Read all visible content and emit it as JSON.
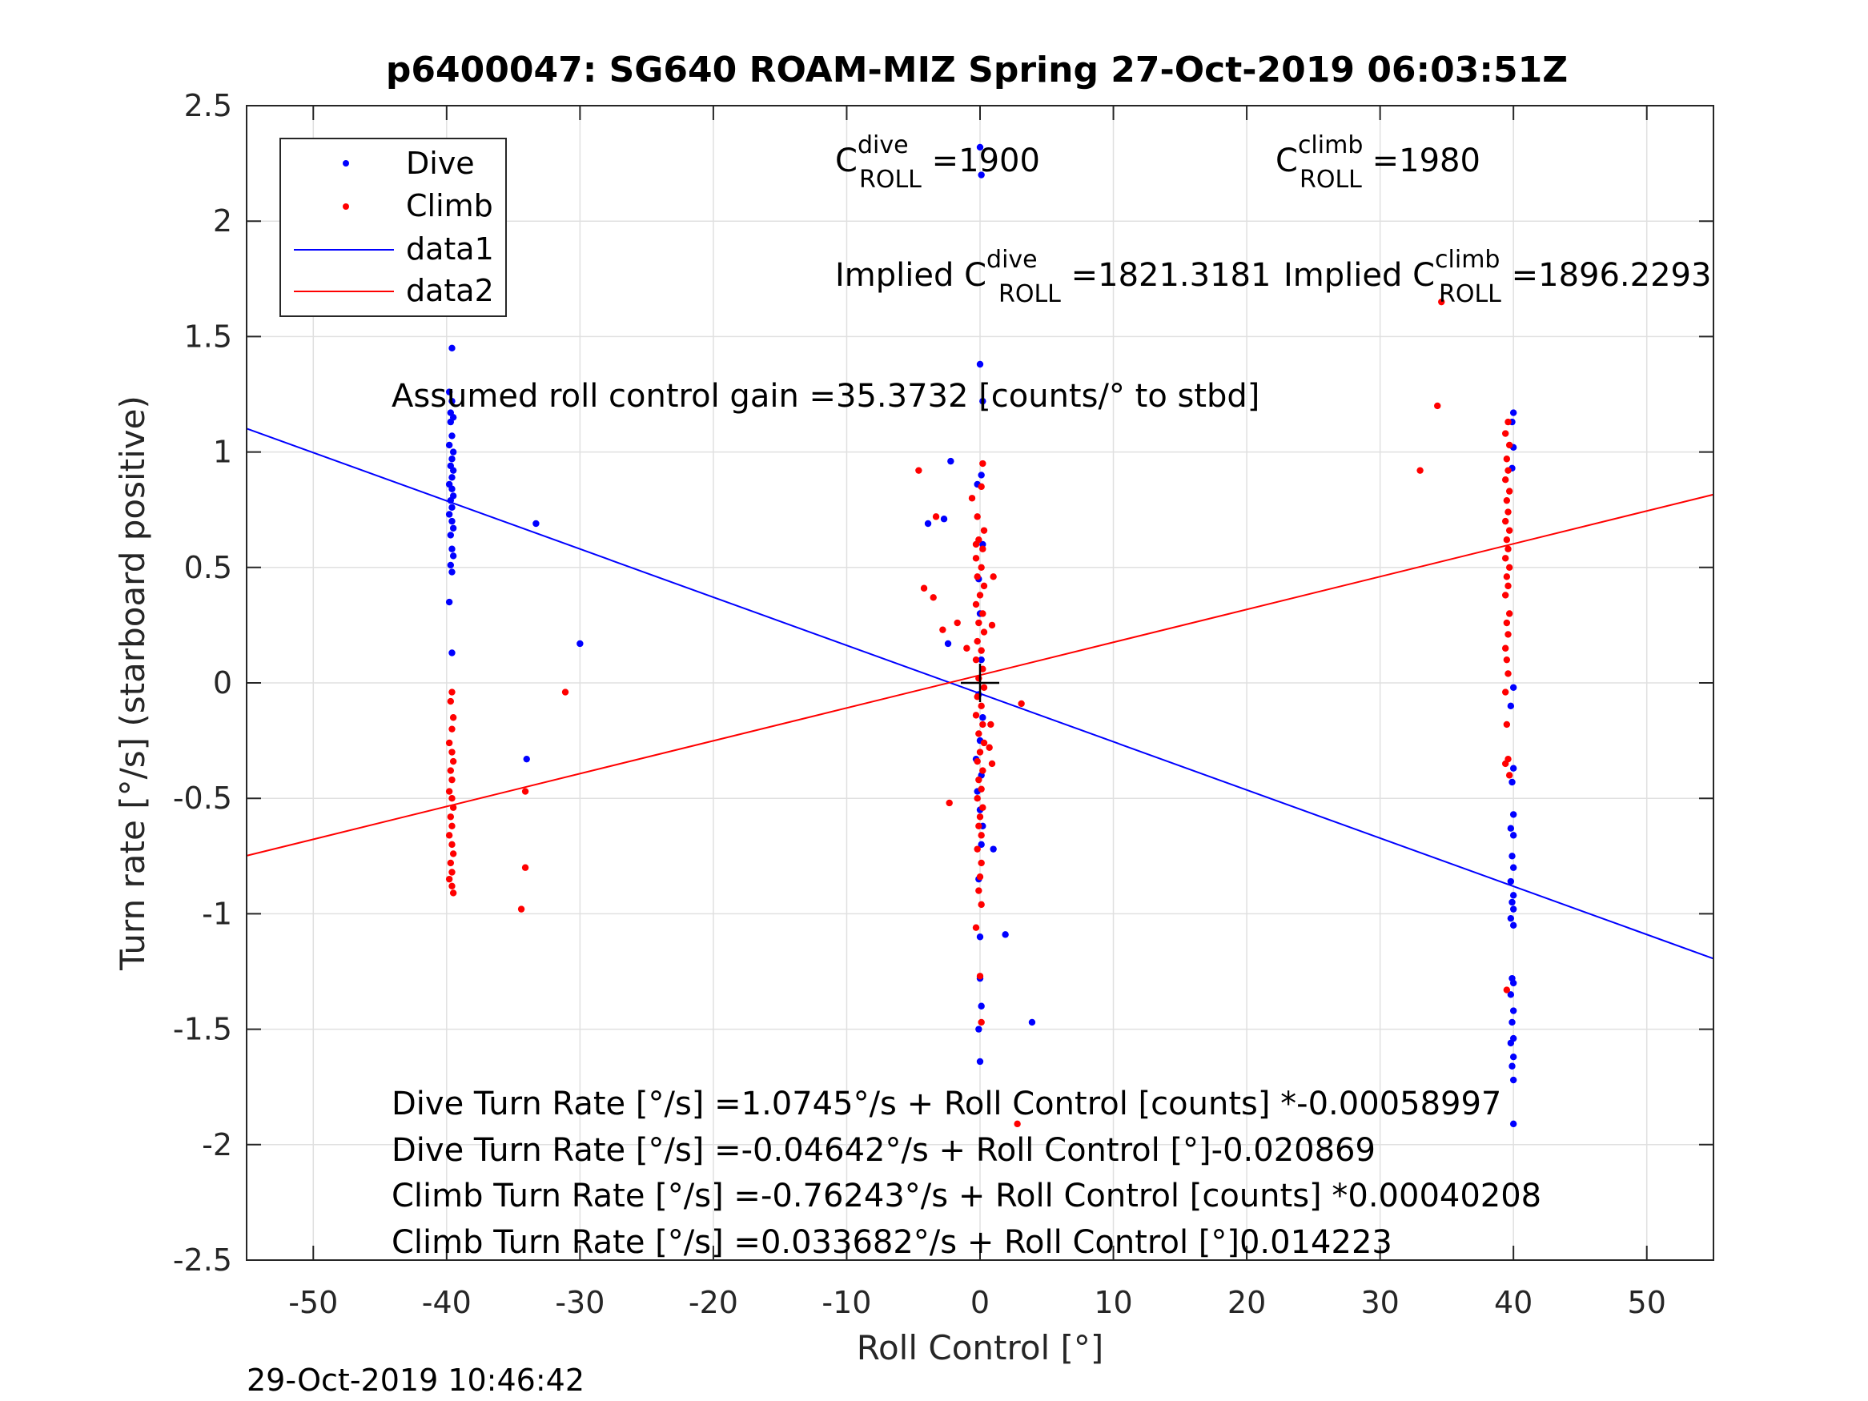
{
  "chart_data": {
    "type": "scatter",
    "title": "p6400047: SG640 ROAM-MIZ Spring 27-Oct-2019 06:03:51Z",
    "xlabel": "Roll Control [°]",
    "ylabel": "Turn rate [°/s] (starboard positive)",
    "xlim": [
      -55,
      55
    ],
    "ylim": [
      -2.5,
      2.5
    ],
    "xticks": [
      "-50",
      "-40",
      "-30",
      "-20",
      "-10",
      "0",
      "10",
      "20",
      "30",
      "40",
      "50"
    ],
    "xtick_values": [
      -50,
      -40,
      -30,
      -20,
      -10,
      0,
      10,
      20,
      30,
      40,
      50
    ],
    "yticks": [
      "2.5",
      "2",
      "1.5",
      "1",
      "0.5",
      "0",
      "-0.5",
      "-1",
      "-1.5",
      "-2",
      "-2.5"
    ],
    "ytick_values": [
      2.5,
      2,
      1.5,
      1,
      0.5,
      0,
      -0.5,
      -1,
      -1.5,
      -2,
      -2.5
    ],
    "grid": true,
    "legend_position": "top-left",
    "series": [
      {
        "name": "Dive",
        "kind": "points",
        "color": "#0000ff",
        "points": [
          [
            -39.6,
            1.45
          ],
          [
            -39.8,
            1.26
          ],
          [
            -39.6,
            1.22
          ],
          [
            -39.7,
            1.17
          ],
          [
            -39.5,
            1.15
          ],
          [
            -39.7,
            1.13
          ],
          [
            -39.6,
            1.07
          ],
          [
            -39.8,
            1.03
          ],
          [
            -39.5,
            1.0
          ],
          [
            -39.6,
            0.97
          ],
          [
            -39.7,
            0.94
          ],
          [
            -39.5,
            0.92
          ],
          [
            -39.6,
            0.89
          ],
          [
            -39.8,
            0.86
          ],
          [
            -39.6,
            0.84
          ],
          [
            -39.5,
            0.81
          ],
          [
            -39.7,
            0.79
          ],
          [
            -39.6,
            0.76
          ],
          [
            -39.8,
            0.73
          ],
          [
            -39.6,
            0.7
          ],
          [
            -39.5,
            0.67
          ],
          [
            -39.7,
            0.64
          ],
          [
            -39.6,
            0.58
          ],
          [
            -39.5,
            0.55
          ],
          [
            -39.7,
            0.51
          ],
          [
            -39.6,
            0.48
          ],
          [
            -39.8,
            0.35
          ],
          [
            -39.6,
            0.13
          ],
          [
            -33.3,
            0.69
          ],
          [
            -30.0,
            0.17
          ],
          [
            -34.0,
            -0.33
          ],
          [
            0.0,
            2.32
          ],
          [
            0.1,
            2.2
          ],
          [
            0.0,
            1.38
          ],
          [
            0.2,
            1.22
          ],
          [
            -2.2,
            0.96
          ],
          [
            -3.9,
            0.69
          ],
          [
            -2.7,
            0.71
          ],
          [
            -2.4,
            0.17
          ],
          [
            0.1,
            0.9
          ],
          [
            -0.2,
            0.86
          ],
          [
            0.2,
            0.6
          ],
          [
            -0.1,
            0.45
          ],
          [
            0.0,
            0.3
          ],
          [
            0.1,
            0.1
          ],
          [
            -0.1,
            -0.05
          ],
          [
            0.2,
            -0.15
          ],
          [
            0.0,
            -0.25
          ],
          [
            -0.3,
            -0.33
          ],
          [
            0.1,
            -0.4
          ],
          [
            -0.2,
            -0.47
          ],
          [
            0.0,
            -0.55
          ],
          [
            0.2,
            -0.62
          ],
          [
            0.1,
            -0.7
          ],
          [
            1.0,
            -0.72
          ],
          [
            -0.1,
            -0.85
          ],
          [
            0.0,
            -1.1
          ],
          [
            1.9,
            -1.09
          ],
          [
            0.0,
            -1.28
          ],
          [
            0.1,
            -1.4
          ],
          [
            -0.1,
            -1.5
          ],
          [
            3.9,
            -1.47
          ],
          [
            0.0,
            -1.64
          ],
          [
            40.0,
            1.17
          ],
          [
            39.9,
            1.13
          ],
          [
            40.0,
            1.02
          ],
          [
            39.9,
            0.93
          ],
          [
            40.0,
            -0.02
          ],
          [
            39.8,
            -0.1
          ],
          [
            40.0,
            -0.37
          ],
          [
            39.9,
            -0.43
          ],
          [
            40.0,
            -0.57
          ],
          [
            39.8,
            -0.63
          ],
          [
            40.0,
            -0.66
          ],
          [
            39.9,
            -0.75
          ],
          [
            40.0,
            -0.8
          ],
          [
            39.8,
            -0.86
          ],
          [
            40.0,
            -0.92
          ],
          [
            39.9,
            -0.95
          ],
          [
            40.0,
            -0.98
          ],
          [
            39.8,
            -1.02
          ],
          [
            40.0,
            -1.05
          ],
          [
            39.9,
            -1.28
          ],
          [
            40.0,
            -1.3
          ],
          [
            39.8,
            -1.35
          ],
          [
            40.0,
            -1.42
          ],
          [
            39.9,
            -1.47
          ],
          [
            40.0,
            -1.54
          ],
          [
            39.8,
            -1.56
          ],
          [
            40.0,
            -1.62
          ],
          [
            39.9,
            -1.66
          ],
          [
            40.0,
            -1.72
          ],
          [
            40.0,
            -1.91
          ]
        ]
      },
      {
        "name": "Climb",
        "kind": "points",
        "color": "#ff0000",
        "points": [
          [
            -39.6,
            -0.04
          ],
          [
            -39.7,
            -0.08
          ],
          [
            -39.5,
            -0.15
          ],
          [
            -39.6,
            -0.2
          ],
          [
            -39.8,
            -0.26
          ],
          [
            -39.6,
            -0.3
          ],
          [
            -39.5,
            -0.34
          ],
          [
            -39.7,
            -0.38
          ],
          [
            -39.6,
            -0.42
          ],
          [
            -39.8,
            -0.47
          ],
          [
            -39.6,
            -0.5
          ],
          [
            -39.5,
            -0.54
          ],
          [
            -39.7,
            -0.58
          ],
          [
            -39.6,
            -0.62
          ],
          [
            -39.8,
            -0.66
          ],
          [
            -39.6,
            -0.7
          ],
          [
            -39.5,
            -0.74
          ],
          [
            -39.7,
            -0.78
          ],
          [
            -39.6,
            -0.82
          ],
          [
            -39.8,
            -0.85
          ],
          [
            -39.6,
            -0.88
          ],
          [
            -39.5,
            -0.91
          ],
          [
            -31.1,
            -0.04
          ],
          [
            -34.1,
            -0.47
          ],
          [
            -34.1,
            -0.8
          ],
          [
            -34.4,
            -0.98
          ],
          [
            -4.6,
            0.92
          ],
          [
            -4.2,
            0.41
          ],
          [
            -3.5,
            0.37
          ],
          [
            -3.3,
            0.72
          ],
          [
            -2.8,
            0.23
          ],
          [
            -2.3,
            -0.52
          ],
          [
            -1.7,
            0.26
          ],
          [
            -1.0,
            0.15
          ],
          [
            -0.6,
            0.8
          ],
          [
            -0.3,
            0.6
          ],
          [
            0.2,
            0.95
          ],
          [
            0.1,
            0.85
          ],
          [
            -0.2,
            0.72
          ],
          [
            0.3,
            0.66
          ],
          [
            -0.1,
            0.62
          ],
          [
            0.2,
            0.58
          ],
          [
            -0.3,
            0.54
          ],
          [
            0.1,
            0.5
          ],
          [
            -0.2,
            0.46
          ],
          [
            0.3,
            0.42
          ],
          [
            0.0,
            0.38
          ],
          [
            -0.3,
            0.34
          ],
          [
            0.2,
            0.3
          ],
          [
            -0.1,
            0.26
          ],
          [
            0.3,
            0.22
          ],
          [
            -0.2,
            0.18
          ],
          [
            0.1,
            0.14
          ],
          [
            -0.3,
            0.1
          ],
          [
            0.2,
            0.06
          ],
          [
            -0.1,
            0.02
          ],
          [
            0.3,
            -0.02
          ],
          [
            -0.2,
            -0.06
          ],
          [
            0.1,
            -0.1
          ],
          [
            -0.3,
            -0.14
          ],
          [
            0.2,
            -0.18
          ],
          [
            -0.1,
            -0.22
          ],
          [
            0.3,
            -0.26
          ],
          [
            0.0,
            -0.3
          ],
          [
            -0.2,
            -0.34
          ],
          [
            0.2,
            -0.38
          ],
          [
            -0.1,
            -0.42
          ],
          [
            0.1,
            -0.46
          ],
          [
            -0.2,
            -0.5
          ],
          [
            0.2,
            -0.54
          ],
          [
            0.0,
            -0.58
          ],
          [
            -0.1,
            -0.62
          ],
          [
            0.1,
            -0.66
          ],
          [
            -0.2,
            -0.72
          ],
          [
            0.1,
            -0.78
          ],
          [
            0.0,
            -0.84
          ],
          [
            -0.1,
            -0.9
          ],
          [
            0.1,
            -0.96
          ],
          [
            1.0,
            0.46
          ],
          [
            0.9,
            0.25
          ],
          [
            0.8,
            -0.18
          ],
          [
            0.9,
            -0.35
          ],
          [
            0.7,
            -0.28
          ],
          [
            3.1,
            -0.09
          ],
          [
            -0.3,
            -1.06
          ],
          [
            0.0,
            -1.27
          ],
          [
            0.1,
            -1.47
          ],
          [
            2.8,
            -1.91
          ],
          [
            33.0,
            0.92
          ],
          [
            34.3,
            1.2
          ],
          [
            34.6,
            1.65
          ],
          [
            39.6,
            1.13
          ],
          [
            39.4,
            1.08
          ],
          [
            39.7,
            1.03
          ],
          [
            39.5,
            0.97
          ],
          [
            39.6,
            0.92
          ],
          [
            39.4,
            0.88
          ],
          [
            39.7,
            0.83
          ],
          [
            39.5,
            0.79
          ],
          [
            39.6,
            0.74
          ],
          [
            39.4,
            0.7
          ],
          [
            39.7,
            0.66
          ],
          [
            39.5,
            0.62
          ],
          [
            39.6,
            0.58
          ],
          [
            39.4,
            0.54
          ],
          [
            39.7,
            0.5
          ],
          [
            39.5,
            0.46
          ],
          [
            39.6,
            0.42
          ],
          [
            39.4,
            0.38
          ],
          [
            39.7,
            0.3
          ],
          [
            39.5,
            0.26
          ],
          [
            39.6,
            0.21
          ],
          [
            39.4,
            0.15
          ],
          [
            39.5,
            0.1
          ],
          [
            39.6,
            0.04
          ],
          [
            39.4,
            -0.04
          ],
          [
            39.5,
            -0.18
          ],
          [
            39.6,
            -0.33
          ],
          [
            39.4,
            -0.35
          ],
          [
            39.7,
            -0.4
          ],
          [
            39.5,
            -1.33
          ]
        ]
      },
      {
        "name": "data1",
        "kind": "line",
        "color": "#0000ff",
        "x": [
          -55,
          55
        ],
        "y": [
          1.1016,
          -1.1942
        ]
      },
      {
        "name": "data2",
        "kind": "line",
        "color": "#ff0000",
        "x": [
          -55,
          55
        ],
        "y": [
          -0.7486,
          0.8158
        ]
      }
    ],
    "markers": [
      {
        "symbol": "+",
        "x": 0.0,
        "y": 0.0,
        "color": "#000000"
      }
    ],
    "legend": [
      {
        "label": "Dive",
        "kind": "dot",
        "color": "#0000ff"
      },
      {
        "label": "Climb",
        "kind": "dot",
        "color": "#ff0000"
      },
      {
        "label": "data1",
        "kind": "line",
        "color": "#0000ff"
      },
      {
        "label": "data2",
        "kind": "line",
        "color": "#ff0000"
      }
    ],
    "annotations": {
      "c_dive": {
        "main": "C",
        "sup": "dive",
        "sub": "ROLL",
        "rest": " =1900"
      },
      "c_climb": {
        "main": "C",
        "sup": "climb",
        "sub": "ROLL",
        "rest": " =1980"
      },
      "implied_dive": {
        "main": "Implied C",
        "sup": "dive",
        "sub": "ROLL",
        "rest": " =1821.3181"
      },
      "implied_climb": {
        "main": "Implied C",
        "sup": "climb",
        "sub": "ROLL",
        "rest": " =1896.2293"
      },
      "gain": "Assumed roll control gain =35.3732 [counts/° to stbd]",
      "fits": [
        "Dive Turn Rate [°/s] =1.0745°/s + Roll Control [counts] *-0.00058997",
        "Dive Turn Rate [°/s] =-0.04642°/s + Roll Control [°]-0.020869",
        "Climb Turn Rate [°/s] =-0.76243°/s + Roll Control [counts] *0.00040208",
        "Climb Turn Rate [°/s] =0.033682°/s + Roll Control [°]0.014223"
      ]
    },
    "timestamp": "29-Oct-2019 10:46:42"
  }
}
